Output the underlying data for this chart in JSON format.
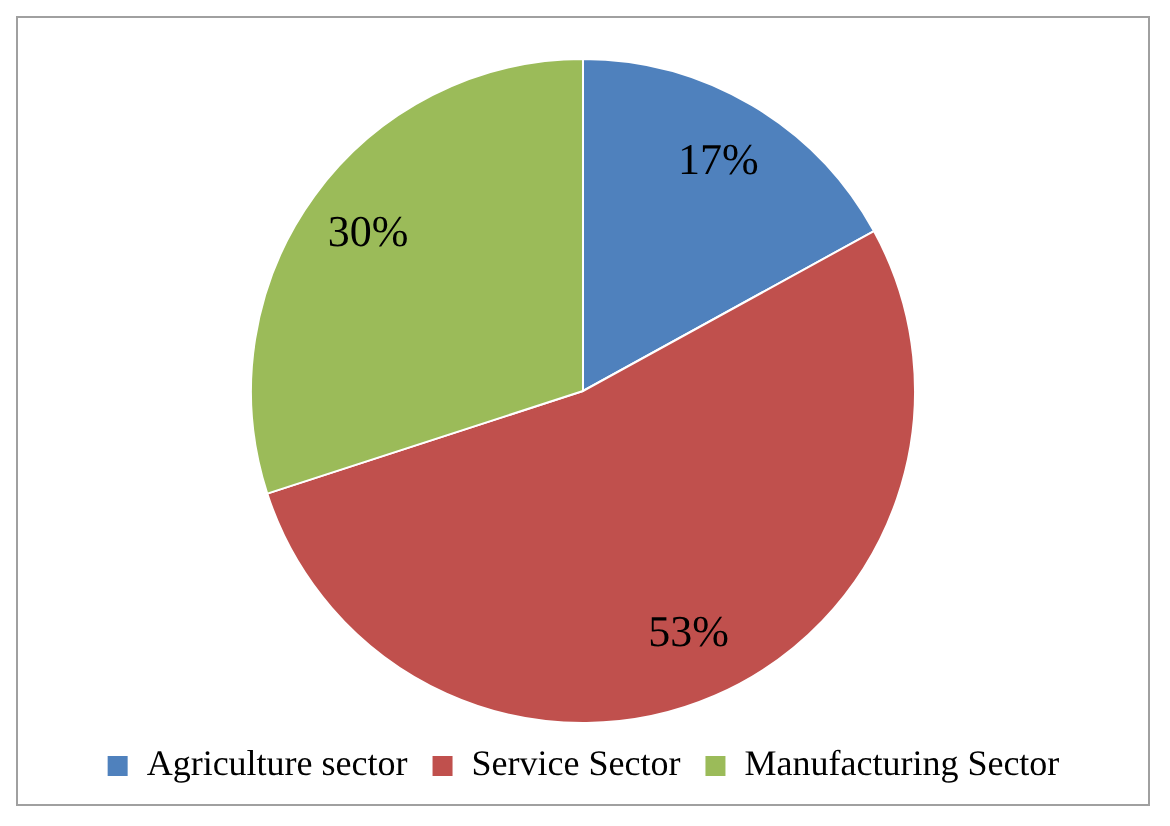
{
  "chart_data": {
    "type": "pie",
    "categories": [
      "Agriculture sector",
      "Service Sector",
      "Manufacturing Sector"
    ],
    "values": [
      17,
      53,
      30
    ],
    "colors": [
      "#4f81bd",
      "#c0504d",
      "#9bbb59"
    ],
    "value_labels": [
      "17%",
      "53%",
      "30%"
    ],
    "legend": "bottom"
  }
}
